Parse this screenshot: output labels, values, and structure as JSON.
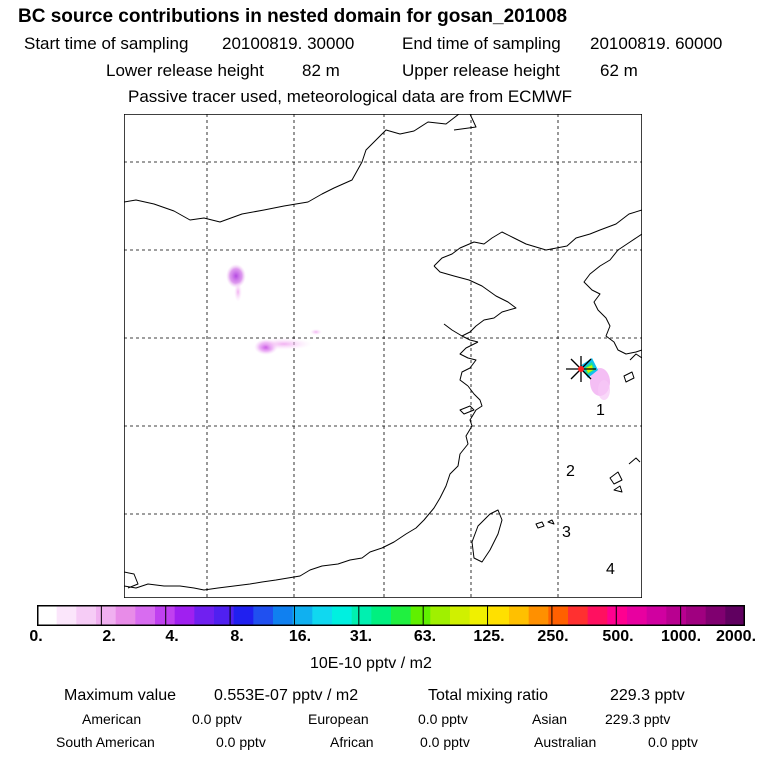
{
  "title": "BC  source contributions in nested domain for gosan_201008",
  "sampling": {
    "start_label": "Start time of sampling",
    "start_value": "20100819. 30000",
    "end_label": "End time of sampling",
    "end_value": "20100819. 60000"
  },
  "release": {
    "lower_label": "Lower release height",
    "lower_value": "82 m",
    "upper_label": "Upper release height",
    "upper_value": "62 m"
  },
  "note": "Passive tracer used, meteorological data are from ECMWF",
  "map": {
    "receptor_icon": "star-icon",
    "labels": [
      "1",
      "2",
      "3",
      "4"
    ]
  },
  "colorbar": {
    "ticks": [
      "0.",
      "2.",
      "4.",
      "8.",
      "16.",
      "31.",
      "63.",
      "125.",
      "250.",
      "500.",
      "1000.",
      "2000."
    ],
    "colors": [
      "#ffffff",
      "#fbe6fb",
      "#f6ccf6",
      "#f0b0f0",
      "#e88ce8",
      "#d86cf0",
      "#c040f0",
      "#a020f0",
      "#7020f0",
      "#5020f0",
      "#2020f0",
      "#2050f0",
      "#1080f0",
      "#10b0f0",
      "#10d8f0",
      "#00f0e0",
      "#00f0b0",
      "#00f080",
      "#20f040",
      "#60f000",
      "#a0f000",
      "#d0f000",
      "#f0f000",
      "#ffe000",
      "#ffc000",
      "#ff9000",
      "#ff6000",
      "#ff3030",
      "#ff1060",
      "#ff0090",
      "#e800a0",
      "#d000a0",
      "#b80090",
      "#a00080",
      "#800070",
      "#600060"
    ],
    "units": "10E-10 pptv / m2"
  },
  "stats": {
    "max_label": "Maximum value",
    "max_value": "0.553E-07 pptv / m2",
    "total_label": "Total mixing ratio",
    "total_value": "229.3 pptv"
  },
  "regions": [
    {
      "name": "American",
      "value": "0.0 pptv"
    },
    {
      "name": "European",
      "value": "0.0 pptv"
    },
    {
      "name": "Asian",
      "value": "229.3 pptv"
    },
    {
      "name": "South American",
      "value": "0.0 pptv"
    },
    {
      "name": "African",
      "value": "0.0 pptv"
    },
    {
      "name": "Australian",
      "value": "0.0 pptv"
    }
  ]
}
